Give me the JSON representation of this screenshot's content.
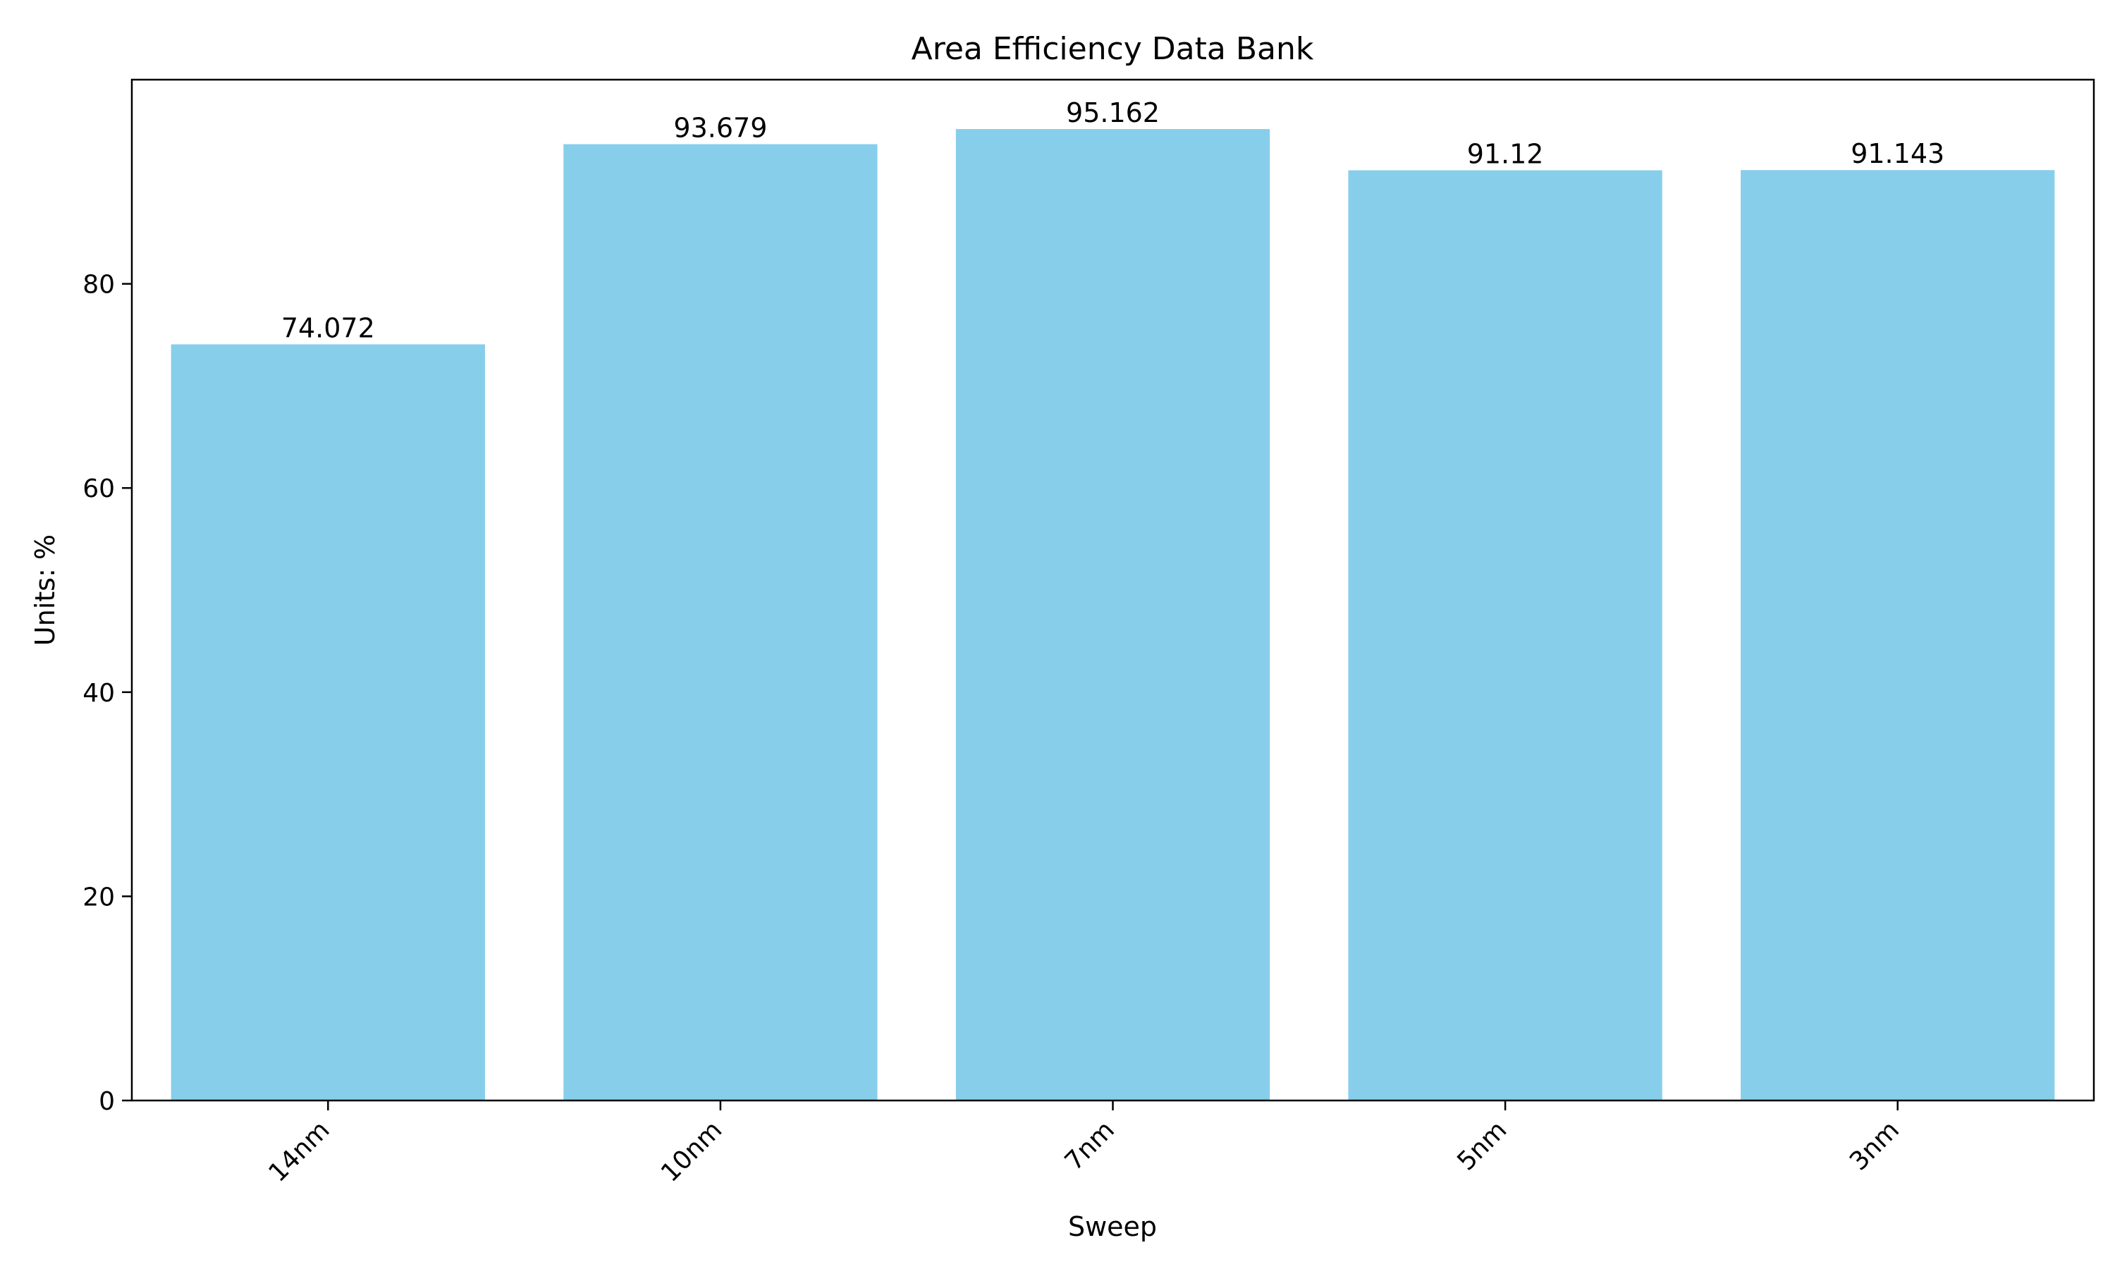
{
  "chart_data": {
    "type": "bar",
    "title": "Area Efficiency Data Bank",
    "xlabel": "Sweep",
    "ylabel": "Units: %",
    "categories": [
      "14nm",
      "10nm",
      "7nm",
      "5nm",
      "3nm"
    ],
    "values": [
      74.072,
      93.679,
      95.162,
      91.12,
      91.143
    ],
    "data_labels": [
      "74.072",
      "93.679",
      "95.162",
      "91.12",
      "91.143"
    ],
    "ylim": [
      0,
      100
    ],
    "yticks": [
      0,
      20,
      40,
      60,
      80
    ],
    "ytick_labels": [
      "0",
      "20",
      "40",
      "60",
      "80"
    ],
    "grid": false,
    "legend": "none",
    "bar_color": "#87CEEB",
    "axis_color": "#000000"
  }
}
